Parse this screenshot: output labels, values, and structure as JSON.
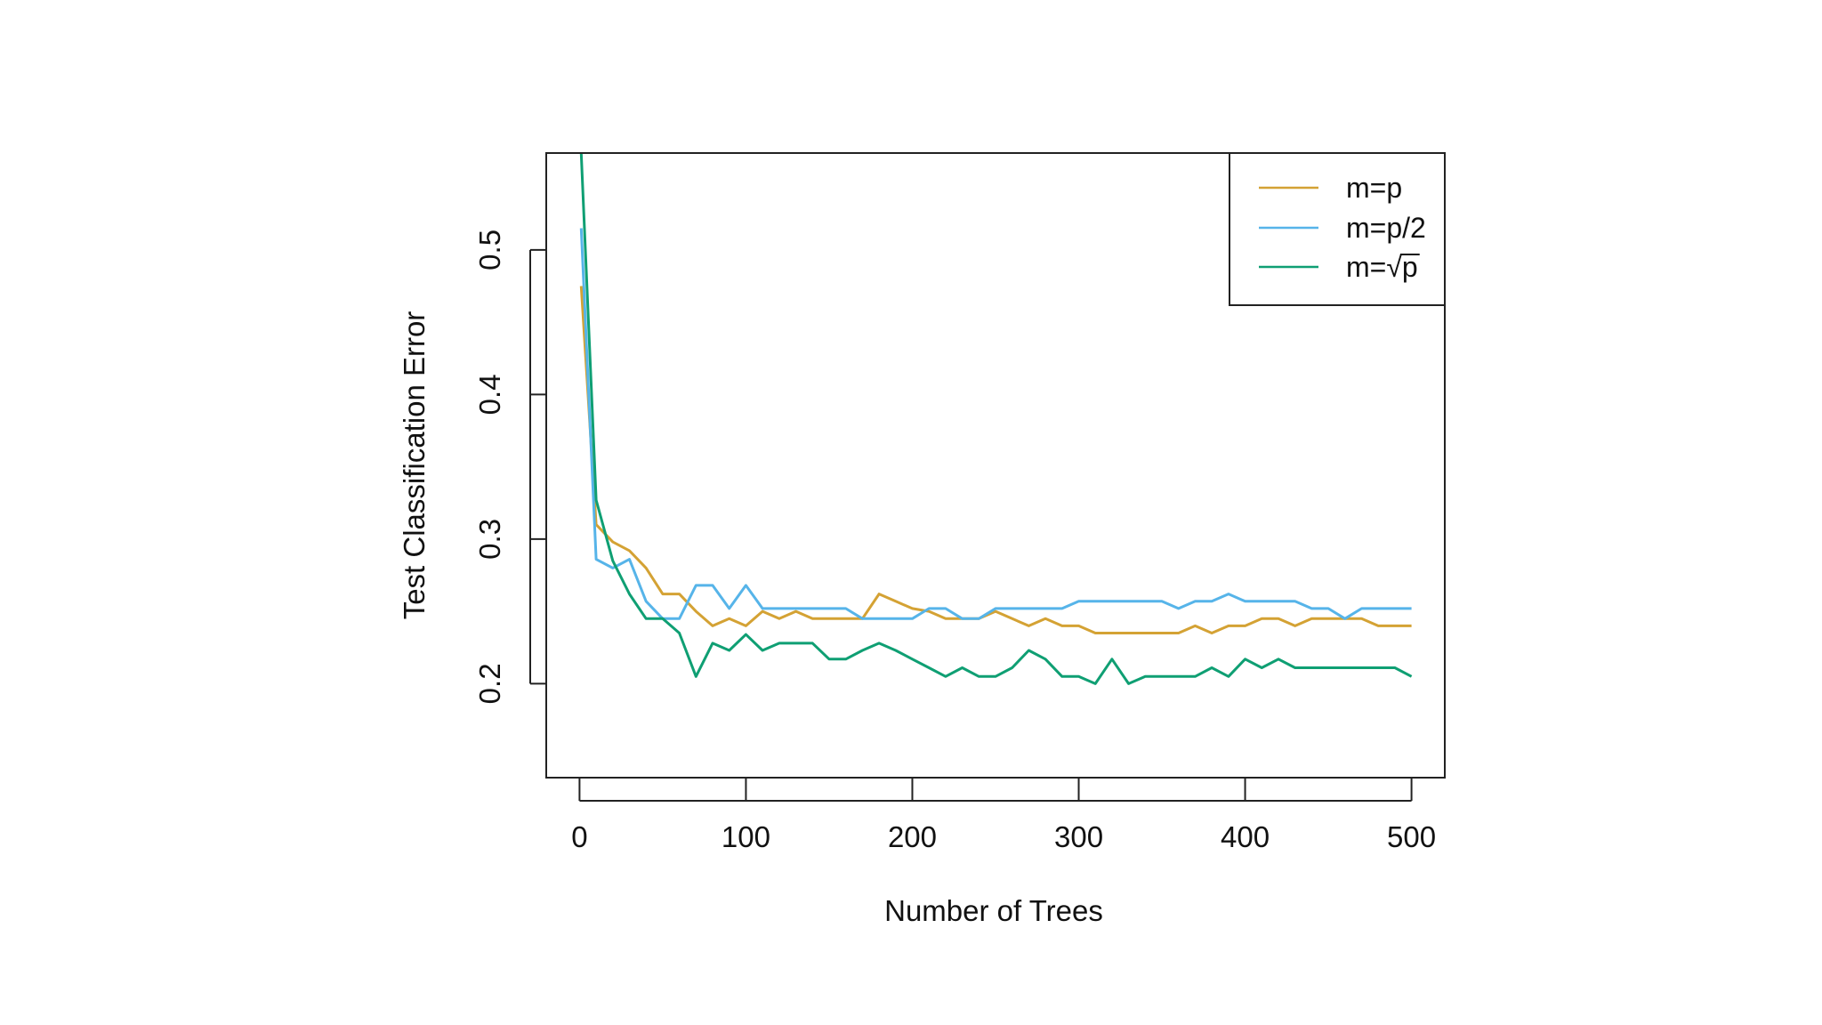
{
  "chart_data": {
    "type": "line",
    "title": "",
    "xlabel": "Number of Trees",
    "ylabel": "Test Classification Error",
    "xlim": [
      -20,
      520
    ],
    "ylim": [
      0.135,
      0.567
    ],
    "xticks": [
      0,
      100,
      200,
      300,
      400,
      500
    ],
    "xtick_labels": [
      "0",
      "100",
      "200",
      "300",
      "400",
      "500"
    ],
    "yticks": [
      0.2,
      0.3,
      0.4,
      0.5
    ],
    "ytick_labels": [
      "0.2",
      "0.3",
      "0.4",
      "0.5"
    ],
    "legend_position": "top-right",
    "legend": [
      {
        "label_prefix": "m=",
        "label_body": "p",
        "sqrt": false
      },
      {
        "label_prefix": "m=",
        "label_body": "p/2",
        "sqrt": false
      },
      {
        "label_prefix": "m=",
        "label_body": "p",
        "sqrt": true
      }
    ],
    "x": [
      1,
      10,
      20,
      30,
      40,
      50,
      60,
      70,
      80,
      90,
      100,
      110,
      120,
      130,
      140,
      150,
      160,
      170,
      180,
      190,
      200,
      210,
      220,
      230,
      240,
      250,
      260,
      270,
      280,
      290,
      300,
      310,
      320,
      330,
      340,
      350,
      360,
      370,
      380,
      390,
      400,
      410,
      420,
      430,
      440,
      450,
      460,
      470,
      480,
      490,
      500
    ],
    "series": [
      {
        "name": "m=p",
        "color": "#d4a234",
        "values": [
          0.475,
          0.31,
          0.298,
          0.292,
          0.28,
          0.262,
          0.262,
          0.25,
          0.24,
          0.245,
          0.24,
          0.25,
          0.245,
          0.25,
          0.245,
          0.245,
          0.245,
          0.245,
          0.262,
          0.257,
          0.252,
          0.25,
          0.245,
          0.245,
          0.245,
          0.25,
          0.245,
          0.24,
          0.245,
          0.24,
          0.24,
          0.235,
          0.235,
          0.235,
          0.235,
          0.235,
          0.235,
          0.24,
          0.235,
          0.24,
          0.24,
          0.245,
          0.245,
          0.24,
          0.245,
          0.245,
          0.245,
          0.245,
          0.24,
          0.24,
          0.24
        ]
      },
      {
        "name": "m=p/2",
        "color": "#56b4e9",
        "values": [
          0.515,
          0.286,
          0.28,
          0.286,
          0.257,
          0.245,
          0.245,
          0.268,
          0.268,
          0.252,
          0.268,
          0.252,
          0.252,
          0.252,
          0.252,
          0.252,
          0.252,
          0.245,
          0.245,
          0.245,
          0.245,
          0.252,
          0.252,
          0.245,
          0.245,
          0.252,
          0.252,
          0.252,
          0.252,
          0.252,
          0.257,
          0.257,
          0.257,
          0.257,
          0.257,
          0.257,
          0.252,
          0.257,
          0.257,
          0.262,
          0.257,
          0.257,
          0.257,
          0.257,
          0.252,
          0.252,
          0.245,
          0.252,
          0.252,
          0.252,
          0.252
        ]
      },
      {
        "name": "m=sqrt(p)",
        "color": "#0f9f73",
        "values": [
          0.567,
          0.327,
          0.285,
          0.262,
          0.245,
          0.245,
          0.235,
          0.205,
          0.228,
          0.223,
          0.234,
          0.223,
          0.228,
          0.228,
          0.228,
          0.217,
          0.217,
          0.223,
          0.228,
          0.223,
          0.217,
          0.211,
          0.205,
          0.211,
          0.205,
          0.205,
          0.211,
          0.223,
          0.217,
          0.205,
          0.205,
          0.2,
          0.217,
          0.2,
          0.205,
          0.205,
          0.205,
          0.205,
          0.211,
          0.205,
          0.217,
          0.211,
          0.217,
          0.211,
          0.211,
          0.211,
          0.211,
          0.211,
          0.211,
          0.211,
          0.205
        ]
      }
    ]
  }
}
